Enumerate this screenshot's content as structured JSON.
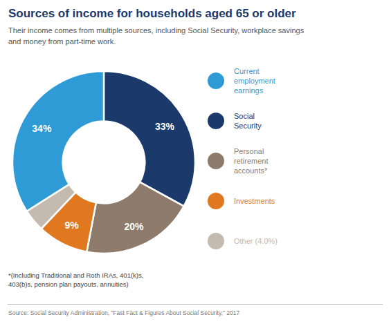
{
  "chart_data": {
    "type": "pie",
    "title": "Sources of income for households aged 65 or older",
    "subtitle": "Their income comes from multiple sources, including Social Security, workplace savings\nand money from part-time work.",
    "categories": [
      "Social\nSecurity",
      "Personal\nretirement\naccounts*",
      "Investments",
      "Other (4.0%)",
      "Current\nemployment\nearnings"
    ],
    "values": [
      33,
      20,
      9,
      4,
      34
    ],
    "value_labels": [
      "33%",
      "20%",
      "9%",
      null,
      "34%"
    ],
    "colors": [
      "#1B3A6B",
      "#8E7B6B",
      "#E07820",
      "#C4BAB0",
      "#2E9BD6"
    ],
    "data_labels": true,
    "legend": "right",
    "legend_entries": [
      {
        "name": "Current\nemployment\nearnings",
        "color": "#2E9BD6"
      },
      {
        "name": "Social\nSecurity",
        "color": "#1B3A6B"
      },
      {
        "name": "Personal\nretirement\naccounts*",
        "color": "#8E7B6B"
      },
      {
        "name": "Investments",
        "color": "#E07820"
      },
      {
        "name": "Other (4.0%)",
        "color": "#C4BAB0"
      }
    ],
    "footnote": "*(Including Traditional and Roth IRAs, 401(k)s,\n403(b)s, pension plan payouts, annuities)",
    "source": "Source: Social Security Administration, \"Fast Fact & Figures About Social Security,\" 2017"
  }
}
